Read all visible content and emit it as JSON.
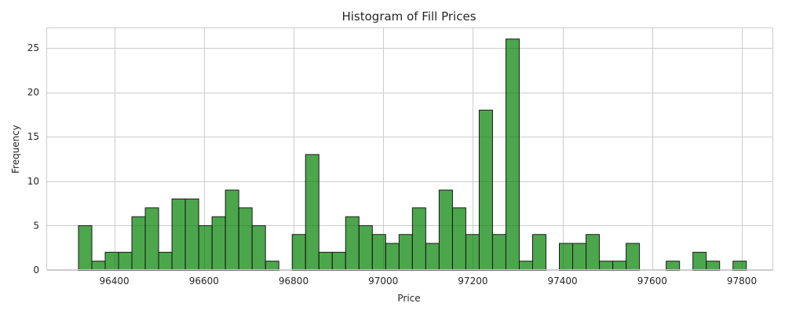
{
  "chart_data": {
    "type": "bar",
    "title": "Histogram of Fill Prices",
    "xlabel": "Price",
    "ylabel": "Frequency",
    "bar_color": "#008000",
    "bin_start": 96320,
    "bin_width": 29.8,
    "frequencies": [
      5,
      1,
      2,
      2,
      6,
      7,
      2,
      8,
      8,
      5,
      6,
      9,
      7,
      5,
      1,
      0,
      4,
      13,
      2,
      2,
      6,
      5,
      4,
      3,
      4,
      7,
      3,
      9,
      7,
      4,
      18,
      4,
      26,
      1,
      4,
      0,
      3,
      3,
      4,
      1,
      1,
      3,
      0,
      0,
      1,
      0,
      2,
      1,
      0,
      1
    ],
    "xlim": [
      96250,
      97870
    ],
    "ylim": [
      0,
      27.3
    ],
    "xticks": [
      96400,
      96600,
      96800,
      97000,
      97200,
      97400,
      97600,
      97800
    ],
    "yticks": [
      0,
      5,
      10,
      15,
      20,
      25
    ],
    "grid": true
  }
}
